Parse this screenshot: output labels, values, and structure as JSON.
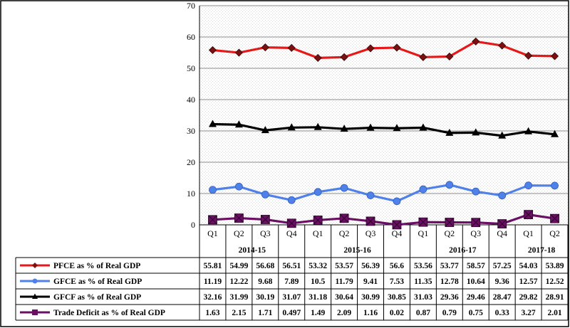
{
  "chart_data": {
    "type": "line",
    "title": "",
    "xlabel": "",
    "ylabel": "",
    "ylim": [
      0,
      70
    ],
    "yticks": [
      0,
      10,
      20,
      30,
      40,
      50,
      60,
      70
    ],
    "grid": true,
    "categories": [
      "Q1",
      "Q2",
      "Q3",
      "Q4",
      "Q1",
      "Q2",
      "Q3",
      "Q4",
      "Q1",
      "Q2",
      "Q3",
      "Q4",
      "Q1",
      "Q2"
    ],
    "years": [
      {
        "label": "2014-15",
        "span": 4
      },
      {
        "label": "2015-16",
        "span": 4
      },
      {
        "label": "2016-17",
        "span": 4
      },
      {
        "label": "2017-18",
        "span": 2
      }
    ],
    "series": [
      {
        "name": "PFCE as % of Real GDP",
        "color": "#e41a1a",
        "marker": "diamond",
        "values": [
          55.81,
          54.99,
          56.68,
          56.51,
          53.32,
          53.57,
          56.39,
          56.6,
          53.56,
          53.77,
          58.57,
          57.25,
          54.03,
          53.89
        ],
        "labels": [
          "55.81",
          "54.99",
          "56.68",
          "56.51",
          "53.32",
          "53.57",
          "56.39",
          "56.6",
          "53.56",
          "53.77",
          "58.57",
          "57.25",
          "54.03",
          "53.89"
        ]
      },
      {
        "name": "GFCE as % of Real GDP",
        "color": "#4f81e8",
        "marker": "circle",
        "values": [
          11.19,
          12.22,
          9.68,
          7.89,
          10.5,
          11.79,
          9.41,
          7.53,
          11.35,
          12.78,
          10.64,
          9.36,
          12.57,
          12.52
        ],
        "labels": [
          "11.19",
          "12.22",
          "9.68",
          "7.89",
          "10.5",
          "11.79",
          "9.41",
          "7.53",
          "11.35",
          "12.78",
          "10.64",
          "9.36",
          "12.57",
          "12.52"
        ]
      },
      {
        "name": "GFCF as % of Real GDP",
        "color": "#000000",
        "marker": "triangle",
        "values": [
          32.16,
          31.99,
          30.19,
          31.07,
          31.18,
          30.64,
          30.99,
          30.85,
          31.03,
          29.36,
          29.46,
          28.47,
          29.82,
          28.91
        ],
        "labels": [
          "32.16",
          "31.99",
          "30.19",
          "31.07",
          "31.18",
          "30.64",
          "30.99",
          "30.85",
          "31.03",
          "29.36",
          "29.46",
          "28.47",
          "29.82",
          "28.91"
        ]
      },
      {
        "name": "Trade Deficit as % of Real GDP",
        "color": "#6a0f63",
        "marker": "square",
        "values": [
          1.63,
          2.15,
          1.71,
          0.497,
          1.49,
          2.09,
          1.16,
          0.02,
          0.87,
          0.79,
          0.75,
          0.33,
          3.27,
          2.01
        ],
        "labels": [
          "1.63",
          "2.15",
          "1.71",
          "0.497",
          "1.49",
          "2.09",
          "1.16",
          "0.02",
          "0.87",
          "0.79",
          "0.75",
          "0.33",
          "3.27",
          "2.01"
        ]
      }
    ]
  }
}
